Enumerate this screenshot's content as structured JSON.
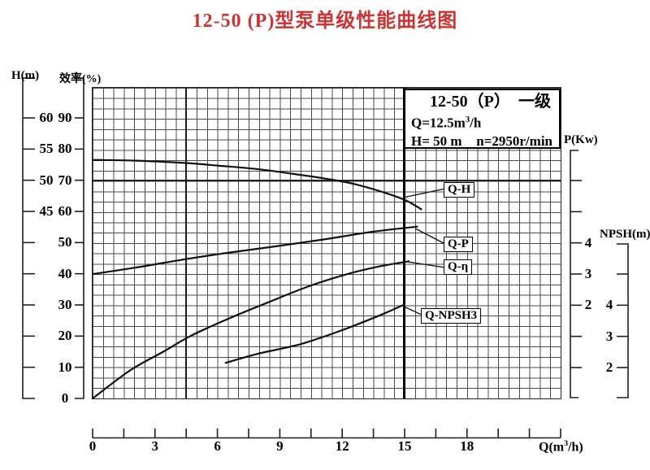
{
  "title": "12-50 (P)型泵单级性能曲线图",
  "colors": {
    "title_red": "#cc3333",
    "curve": "#111111",
    "grid_line": "#4a4a4a",
    "accent": "#1d1d1d"
  },
  "legend": {
    "model": "12-50（P）",
    "stage": "一级",
    "q_prefix": "Q=12.5m",
    "q_sup": "3",
    "q_suffix": "/h",
    "head": "H= 50 m",
    "speed": "n=2950r/min"
  },
  "axes": {
    "h": {
      "title": "H(m)",
      "tick_labels": [
        "60",
        "55",
        "50",
        "45",
        "",
        "",
        "",
        "",
        ""
      ]
    },
    "eff": {
      "title": "效率(%)",
      "tick_labels": [
        "90",
        "80",
        "70",
        "60",
        "50",
        "40",
        "30",
        "20",
        "10",
        "0"
      ]
    },
    "p": {
      "title": "P(Kw)",
      "tick_labels": [
        "",
        "",
        "4",
        "3",
        "2",
        "",
        ""
      ]
    },
    "npsh": {
      "title": "NPSH(m)",
      "tick_labels": [
        "",
        "4",
        "3",
        "2"
      ]
    },
    "q": {
      "title_prefix": "Q(m",
      "title_sup": "3",
      "title_suffix": "/h)",
      "tick_labels": [
        "0",
        "",
        "3",
        "",
        "6",
        "",
        "9",
        "",
        "12",
        "",
        "15",
        "",
        "18",
        "",
        "",
        ""
      ]
    }
  },
  "chart_data": {
    "type": "line",
    "xlabel": "Q (m3/h)",
    "x_range": [
      0,
      22.5
    ],
    "x_tick_step": 1.5,
    "grid": "fine square grid on",
    "rated_point": {
      "Q": 12.5,
      "H": 50,
      "n": "2950r/min"
    },
    "axis_ranges": {
      "H_m": [
        45,
        60
      ],
      "efficiency_pct": [
        0,
        90
      ],
      "P_kW": [
        2,
        4
      ],
      "NPSH_m": [
        2,
        4
      ]
    },
    "series": [
      {
        "label": "Q-H",
        "axis": "H",
        "unit": "m",
        "points": [
          [
            0,
            53.3
          ],
          [
            2,
            53.2
          ],
          [
            4.5,
            52.8
          ],
          [
            6,
            52.4
          ],
          [
            8,
            51.8
          ],
          [
            10,
            50.9
          ],
          [
            11.2,
            50.3
          ],
          [
            12.5,
            49.5
          ],
          [
            13.8,
            48.3
          ],
          [
            15,
            46.9
          ],
          [
            15.8,
            45.4
          ]
        ]
      },
      {
        "label": "Q-P",
        "axis": "P",
        "unit": "Kw",
        "points": [
          [
            0,
            3.0
          ],
          [
            2,
            3.2
          ],
          [
            4.5,
            3.48
          ],
          [
            6.5,
            3.68
          ],
          [
            8.5,
            3.86
          ],
          [
            11.2,
            4.12
          ],
          [
            13.5,
            4.36
          ],
          [
            15.6,
            4.52
          ]
        ]
      },
      {
        "label": "Q-η",
        "axis": "eff",
        "unit": "%",
        "points": [
          [
            0,
            0
          ],
          [
            1.8,
            9
          ],
          [
            3.4,
            15
          ],
          [
            4.7,
            20
          ],
          [
            6.5,
            25.5
          ],
          [
            8.5,
            31
          ],
          [
            10.4,
            36
          ],
          [
            12.3,
            40
          ],
          [
            13.9,
            42.5
          ],
          [
            15.2,
            44
          ]
        ]
      },
      {
        "label": "Q-NPSH3",
        "axis": "NPSH",
        "unit": "m",
        "points": [
          [
            6.4,
            2.15
          ],
          [
            8,
            2.45
          ],
          [
            10,
            2.75
          ],
          [
            12,
            3.2
          ],
          [
            13.9,
            3.7
          ],
          [
            15,
            4.03
          ]
        ]
      }
    ]
  }
}
